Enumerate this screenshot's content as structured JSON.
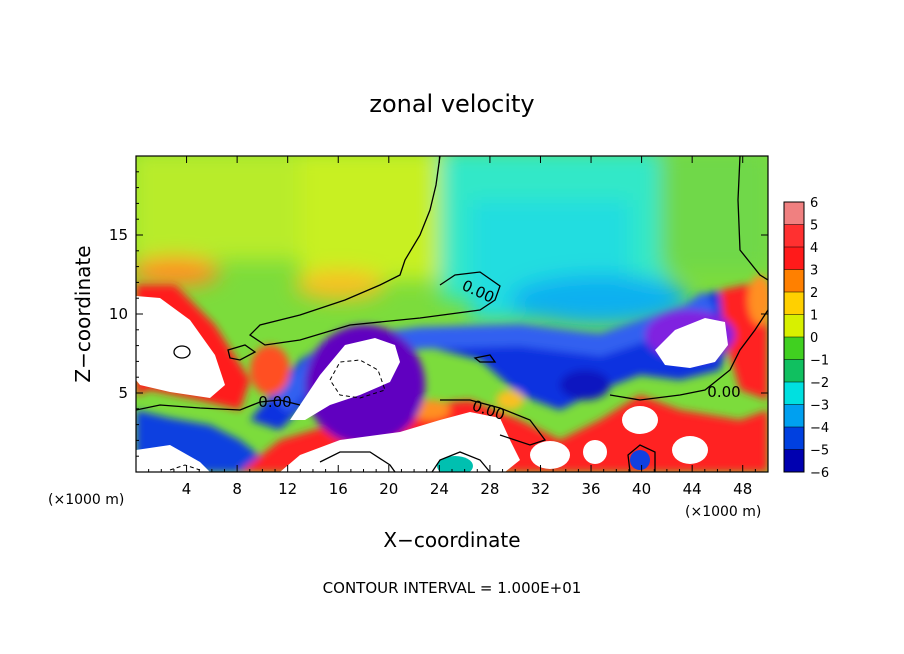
{
  "chart_data": {
    "type": "heatmap",
    "title": "zonal velocity",
    "xlabel": "X−coordinate",
    "ylabel": "Z−coordinate",
    "x_unit_left": "(×1000 m)",
    "x_unit_right": "(×1000 m)",
    "xlim": [
      0,
      50
    ],
    "ylim": [
      0,
      20
    ],
    "x_ticks": [
      4,
      8,
      12,
      16,
      20,
      24,
      28,
      32,
      36,
      40,
      44,
      48
    ],
    "y_ticks": [
      5,
      10,
      15
    ],
    "colorbar": {
      "levels": [
        6,
        5,
        4,
        3,
        2,
        1,
        0,
        -1,
        -2,
        -3,
        -4,
        -5,
        -6
      ],
      "labels": [
        "6",
        "5",
        "4",
        "3",
        "2",
        "1",
        "0",
        "−1",
        "−2",
        "−3",
        "−4",
        "−5",
        "−6"
      ],
      "colors": [
        "#f08080",
        "#ff3030",
        "#ff1a1a",
        "#ff8000",
        "#ffd000",
        "#d8f000",
        "#40d020",
        "#10c060",
        "#00e0e0",
        "#00a0f0",
        "#0040e0",
        "#0000b0",
        "#6000a0"
      ]
    },
    "contour_labels": [
      "0.00",
      "0.00",
      "0.00",
      "0.00"
    ],
    "footer": "CONTOUR INTERVAL = 1.000E+01"
  }
}
